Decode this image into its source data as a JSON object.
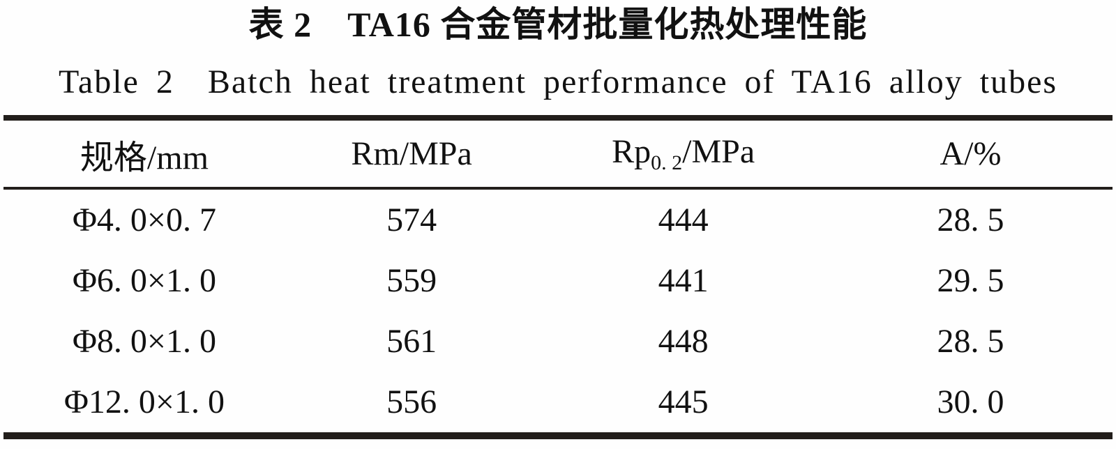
{
  "page": {
    "background": "#fefefe",
    "text_color": "#111111",
    "rule_color": "#221e1b"
  },
  "titles": {
    "zh": "表 2　TA16 合金管材批量化热处理性能",
    "en": "Table 2  Batch heat treatment performance of TA16 alloy tubes"
  },
  "table": {
    "headers": {
      "spec": "规格/mm",
      "rm": "Rm/MPa",
      "rp_base": "Rp",
      "rp_sub": "0. 2",
      "rp_rest": "/MPa",
      "a": "A/%"
    },
    "rows": [
      [
        "Φ4. 0×0. 7",
        "574",
        "444",
        "28. 5"
      ],
      [
        "Φ6. 0×1. 0",
        "559",
        "441",
        "29. 5"
      ],
      [
        "Φ8. 0×1. 0",
        "561",
        "448",
        "28. 5"
      ],
      [
        "Φ12. 0×1. 0",
        "556",
        "445",
        "30. 0"
      ]
    ]
  },
  "chart_data": {
    "type": "table",
    "title_zh": "表 2　TA16 合金管材批量化热处理性能",
    "title_en": "Table 2  Batch heat treatment performance of TA16 alloy tubes",
    "columns": [
      "规格/mm",
      "Rm/MPa",
      "Rp0.2/MPa",
      "A/%"
    ],
    "rows": [
      [
        "Φ4.0×0.7",
        574,
        444,
        28.5
      ],
      [
        "Φ6.0×1.0",
        559,
        441,
        29.5
      ],
      [
        "Φ8.0×1.0",
        561,
        448,
        28.5
      ],
      [
        "Φ12.0×1.0",
        556,
        445,
        30.0
      ]
    ]
  }
}
